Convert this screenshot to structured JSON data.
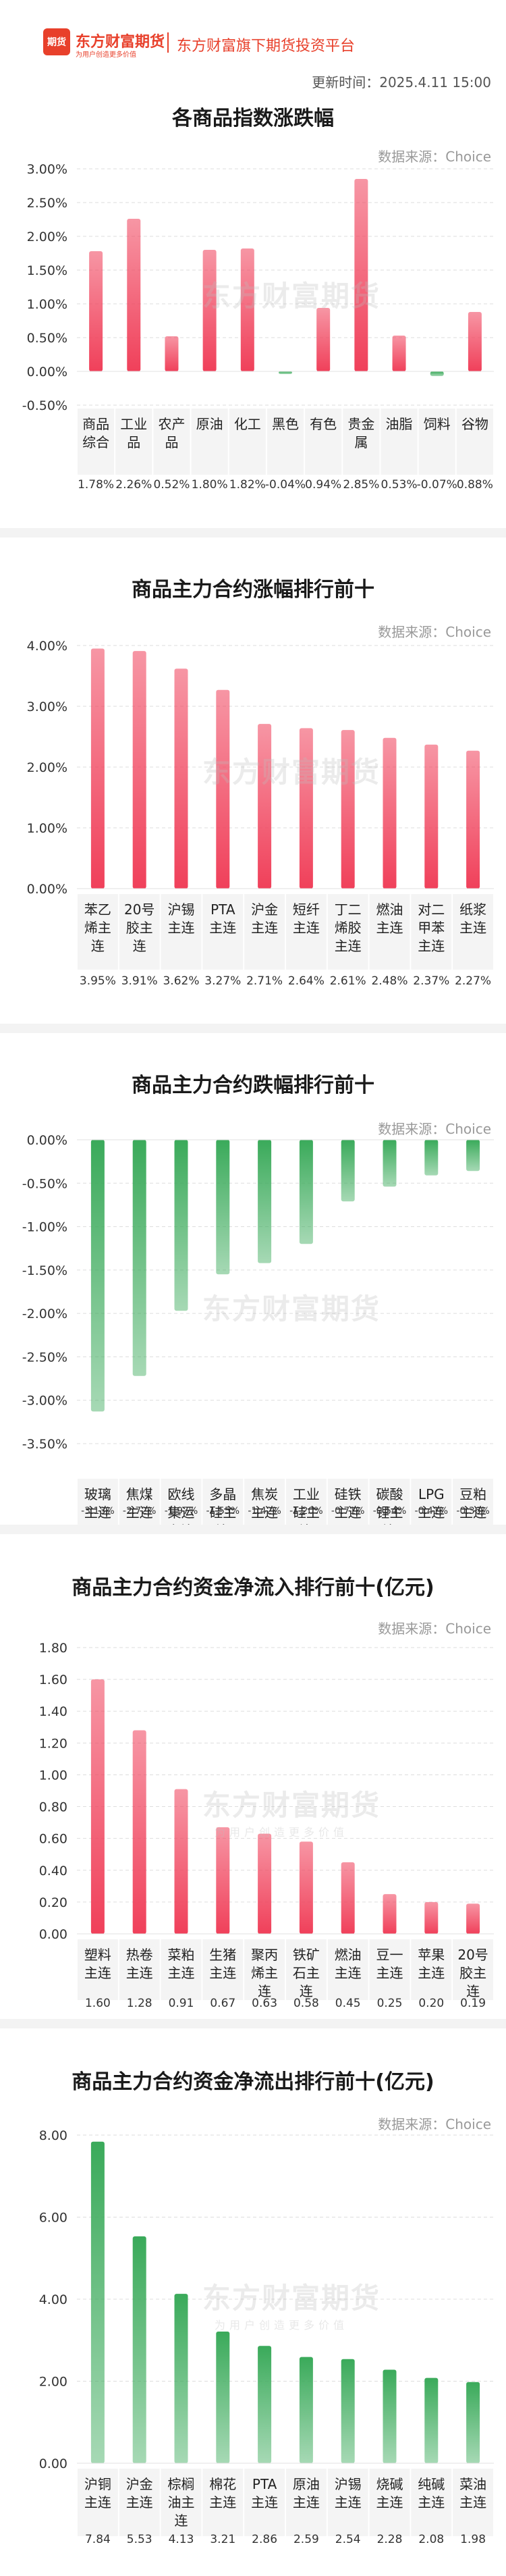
{
  "header": {
    "logo_badge": "期货",
    "logo_text": "东方财富期货",
    "logo_slogan": "为用户创造更多价值",
    "platform": "东方财富旗下期货投资平台",
    "update_time": "更新时间：2025.4.11 15:00"
  },
  "watermark": {
    "main": "东方财富期货",
    "sub": "为用户创造更多价值"
  },
  "charts": [
    {
      "title": "各商品指数涨跌幅",
      "source": "数据来源：Choice"
    },
    {
      "title": "商品主力合约涨幅排行前十",
      "source": "数据来源：Choice"
    },
    {
      "title": "商品主力合约跌幅排行前十",
      "source": "数据来源：Choice"
    },
    {
      "title": "商品主力合约资金净流入排行前十(亿元)",
      "source": "数据来源：Choice"
    },
    {
      "title": "商品主力合约资金净流出排行前十(亿元)",
      "source": "数据来源：Choice"
    }
  ],
  "chart_data": [
    {
      "type": "bar",
      "title": "各商品指数涨跌幅",
      "categories": [
        "商品综合",
        "工业品",
        "农产品",
        "原油",
        "化工",
        "黑色",
        "有色",
        "贵金属",
        "油脂",
        "饲料",
        "谷物"
      ],
      "values": [
        1.78,
        2.26,
        0.52,
        1.8,
        1.82,
        -0.04,
        0.94,
        2.85,
        0.53,
        -0.07,
        0.88
      ],
      "value_labels": [
        "1.78%",
        "2.26%",
        "0.52%",
        "1.80%",
        "1.82%",
        "-0.04%",
        "0.94%",
        "2.85%",
        "0.53%",
        "-0.07%",
        "0.88%"
      ],
      "yticks": [
        "3.00%",
        "2.50%",
        "2.00%",
        "1.50%",
        "1.00%",
        "0.50%",
        "0.00%",
        "-0.50%"
      ],
      "ylim": [
        -0.5,
        3.0
      ],
      "colors": {
        "positive": "#f0405a",
        "negative": "#3aaa5a"
      }
    },
    {
      "type": "bar",
      "title": "商品主力合约涨幅排行前十",
      "categories": [
        "苯乙烯主连",
        "20号胶主连",
        "沪锡主连",
        "PTA主连",
        "沪金主连",
        "短纤主连",
        "丁二烯胶主连",
        "燃油主连",
        "对二甲苯主连",
        "纸浆主连"
      ],
      "values": [
        3.95,
        3.91,
        3.62,
        3.27,
        2.71,
        2.64,
        2.61,
        2.48,
        2.37,
        2.27
      ],
      "value_labels": [
        "3.95%",
        "3.91%",
        "3.62%",
        "3.27%",
        "2.71%",
        "2.64%",
        "2.61%",
        "2.48%",
        "2.37%",
        "2.27%"
      ],
      "yticks": [
        "4.00%",
        "3.00%",
        "2.00%",
        "1.00%",
        "0.00%"
      ],
      "ylim": [
        0,
        4.0
      ],
      "colors": {
        "positive": "#f0405a"
      }
    },
    {
      "type": "bar",
      "title": "商品主力合约跌幅排行前十",
      "categories": [
        "玻璃主连",
        "焦煤主连",
        "欧线集运主连",
        "多晶硅主连",
        "焦炭主连",
        "工业硅主连",
        "硅铁主连",
        "碳酸锂主连",
        "LPG主连",
        "豆粕主连"
      ],
      "values": [
        -3.13,
        -2.72,
        -1.97,
        -1.55,
        -1.42,
        -1.2,
        -0.71,
        -0.54,
        -0.41,
        -0.36
      ],
      "value_labels": [
        "-3.13%",
        "-2.72%",
        "-1.97%",
        "-1.55%",
        "-1.42%",
        "-1.20%",
        "-0.71%",
        "-0.54%",
        "-0.41%",
        "-0.36%"
      ],
      "yticks": [
        "0.00%",
        "-0.50%",
        "-1.00%",
        "-1.50%",
        "-2.00%",
        "-2.50%",
        "-3.00%",
        "-3.50%"
      ],
      "ylim": [
        -3.5,
        0
      ],
      "colors": {
        "negative": "#3aaa5a"
      }
    },
    {
      "type": "bar",
      "title": "商品主力合约资金净流入排行前十(亿元)",
      "categories": [
        "塑料主连",
        "热卷主连",
        "菜粕主连",
        "生猪主连",
        "聚丙烯主连",
        "铁矿石主连",
        "燃油主连",
        "豆一主连",
        "苹果主连",
        "20号胶主连"
      ],
      "values": [
        1.6,
        1.28,
        0.91,
        0.67,
        0.63,
        0.58,
        0.45,
        0.25,
        0.2,
        0.19
      ],
      "value_labels": [
        "1.60",
        "1.28",
        "0.91",
        "0.67",
        "0.63",
        "0.58",
        "0.45",
        "0.25",
        "0.20",
        "0.19"
      ],
      "yticks": [
        "1.80",
        "1.60",
        "1.40",
        "1.20",
        "1.00",
        "0.80",
        "0.60",
        "0.40",
        "0.20",
        "0.00"
      ],
      "ylim": [
        0,
        1.8
      ],
      "colors": {
        "positive": "#f0405a"
      }
    },
    {
      "type": "bar",
      "title": "商品主力合约资金净流出排行前十(亿元)",
      "categories": [
        "沪铜主连",
        "沪金主连",
        "棕榈油主连",
        "棉花主连",
        "PTA主连",
        "原油主连",
        "沪锡主连",
        "烧碱主连",
        "纯碱主连",
        "菜油主连"
      ],
      "values": [
        7.84,
        5.53,
        4.13,
        3.21,
        2.86,
        2.59,
        2.54,
        2.28,
        2.08,
        1.98
      ],
      "value_labels": [
        "7.84",
        "5.53",
        "4.13",
        "3.21",
        "2.86",
        "2.59",
        "2.54",
        "2.28",
        "2.08",
        "1.98"
      ],
      "yticks": [
        "8.00",
        "6.00",
        "4.00",
        "2.00",
        "0.00"
      ],
      "ylim": [
        0,
        8.0
      ],
      "colors": {
        "positive": "#3aaa5a"
      }
    }
  ]
}
